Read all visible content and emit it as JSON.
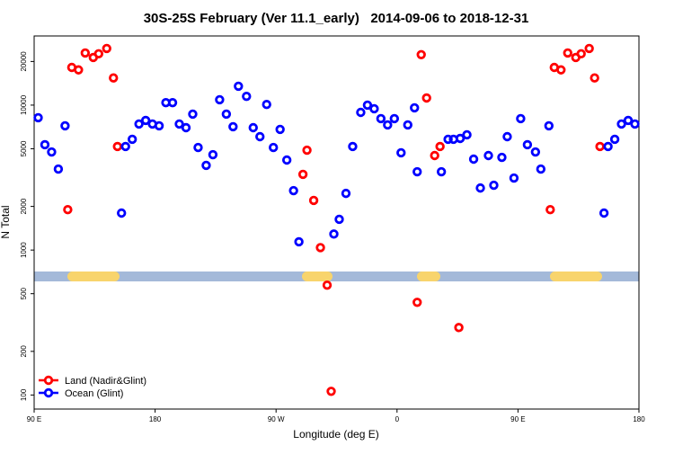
{
  "chart_data": {
    "type": "scatter",
    "title": "30S-25S February (Ver 11.1_early)   2014-09-06 to 2018-12-31",
    "x_label": "Longitude (deg E)",
    "y_label": "N Total",
    "xlim": [
      90,
      540
    ],
    "xticks": [
      {
        "value": 90,
        "label": "90 E"
      },
      {
        "value": 180,
        "label": "180"
      },
      {
        "value": 270,
        "label": "90 W"
      },
      {
        "value": 360,
        "label": "0"
      },
      {
        "value": 450,
        "label": "90 E"
      },
      {
        "value": 540,
        "label": "180"
      }
    ],
    "ylim": [
      80,
      30000
    ],
    "log_y": true,
    "yticks": [
      100,
      200,
      500,
      1000,
      2000,
      5000,
      10000,
      20000
    ],
    "legend": "bottomleft",
    "series": [
      {
        "name": "Land (Nadir&Glint)",
        "color": "#ff0000",
        "x": [
          115,
          118,
          123,
          128,
          134,
          138,
          144,
          149,
          152,
          290,
          293,
          298,
          303,
          308,
          311,
          375,
          378,
          382,
          388,
          392,
          406,
          474,
          477,
          482,
          487,
          493,
          497,
          503,
          507,
          511
        ],
        "values": [
          1900,
          18200,
          17500,
          22900,
          21300,
          22600,
          24600,
          15400,
          5180,
          3330,
          4890,
          2200,
          1040,
          573,
          106,
          436,
          22300,
          11200,
          4490,
          5180,
          292,
          1900,
          18200,
          17500,
          22900,
          21300,
          22600,
          24600,
          15400,
          5180
        ]
      },
      {
        "name": "Ocean (Glint)",
        "color": "#0000ff",
        "x": [
          93,
          98,
          103,
          108,
          113,
          155,
          158,
          163,
          168,
          173,
          178,
          183,
          188,
          193,
          198,
          203,
          208,
          212,
          218,
          223,
          228,
          233,
          238,
          242,
          248,
          253,
          258,
          263,
          268,
          273,
          278,
          283,
          287,
          313,
          317,
          322,
          327,
          333,
          338,
          343,
          348,
          353,
          358,
          363,
          368,
          373,
          375,
          393,
          398,
          402,
          407,
          412,
          417,
          422,
          428,
          432,
          438,
          442,
          447,
          452,
          457,
          463,
          467,
          473,
          514,
          517,
          522,
          527,
          532,
          537
        ],
        "values": [
          8190,
          5330,
          4750,
          3620,
          7200,
          1800,
          5180,
          5810,
          7410,
          7840,
          7410,
          7200,
          10400,
          10400,
          7410,
          6990,
          8670,
          5100,
          3840,
          4550,
          10900,
          8670,
          7100,
          13500,
          11500,
          6990,
          6060,
          10100,
          5100,
          6800,
          4180,
          2570,
          1140,
          1290,
          1630,
          2460,
          5180,
          8910,
          10000,
          9440,
          8070,
          7300,
          8070,
          4690,
          7300,
          9580,
          3470,
          3470,
          5810,
          5810,
          5890,
          6240,
          4240,
          2680,
          4490,
          2800,
          4360,
          6060,
          3140,
          8070,
          5330,
          4750,
          3620,
          7200,
          1800,
          5180,
          5810,
          7410,
          7840,
          7410
        ]
      }
    ]
  }
}
